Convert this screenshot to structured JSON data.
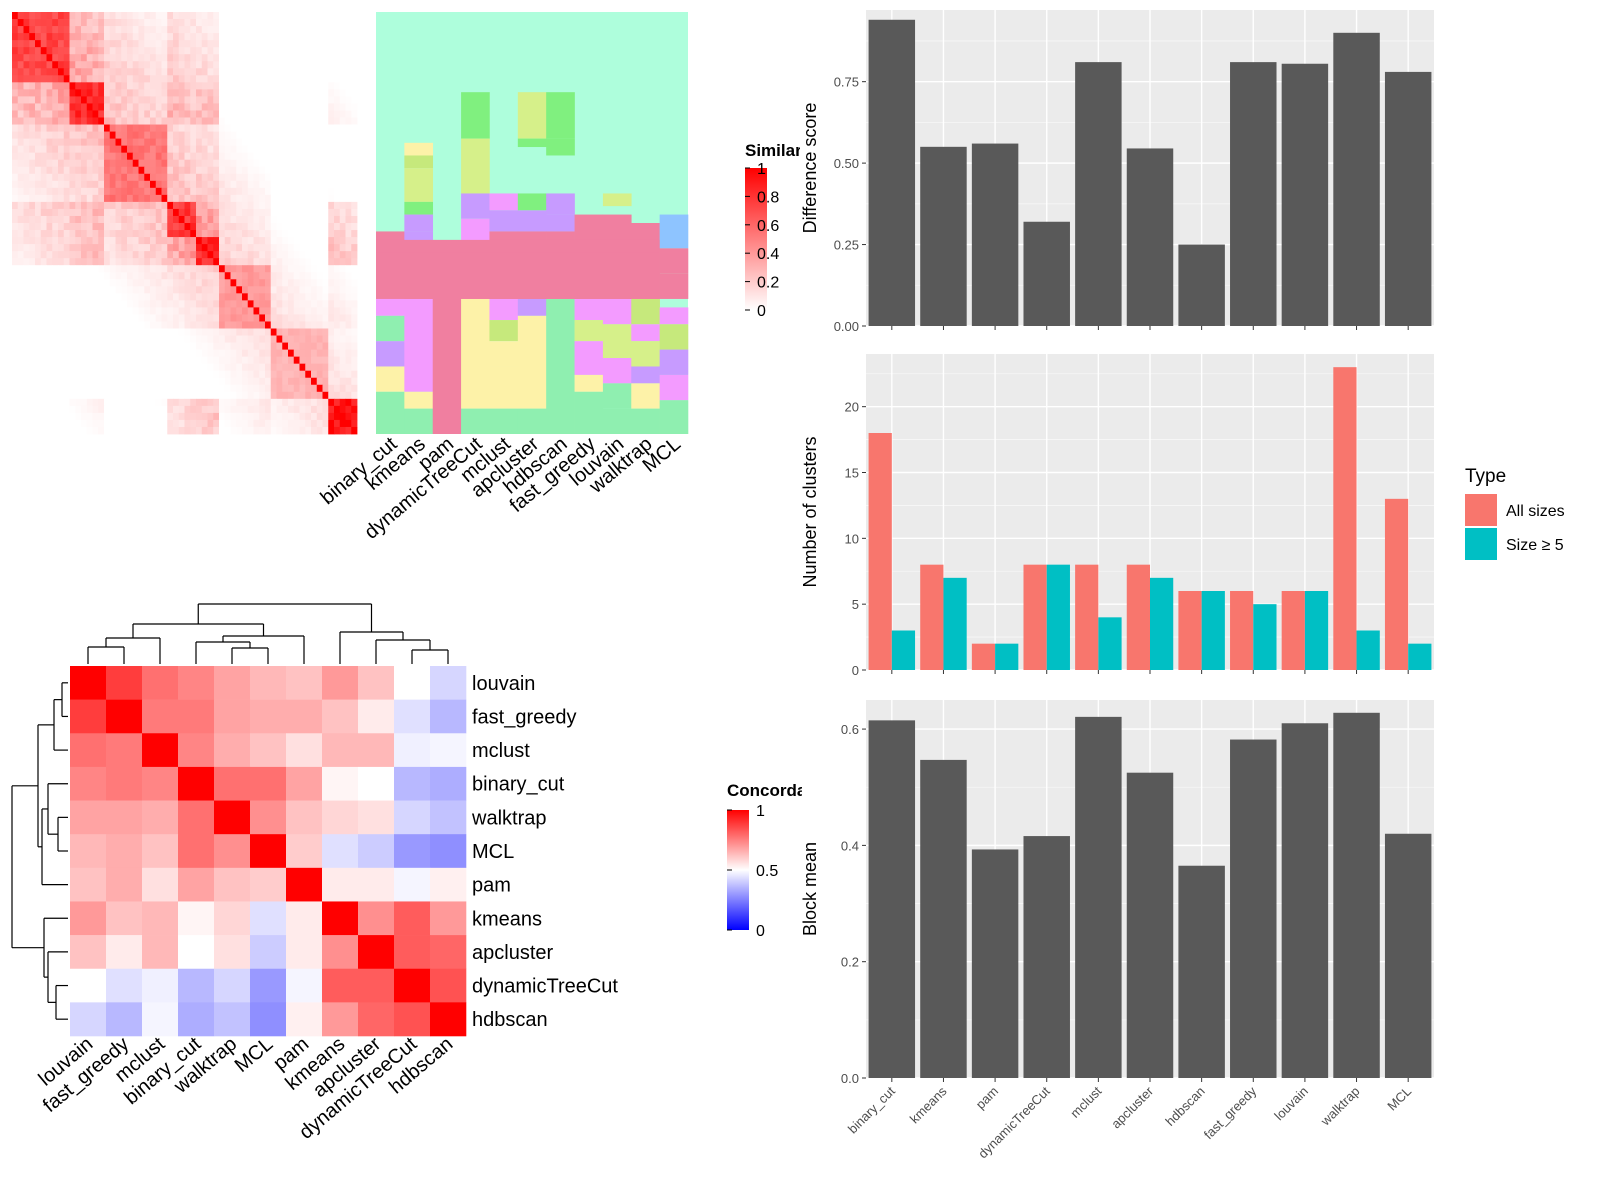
{
  "chart_data": [
    {
      "type": "heatmap",
      "title": "",
      "legend_title": "Similarity",
      "legend_ticks": [
        "1",
        "0.8",
        "0.6",
        "0.4",
        "0.2",
        "0"
      ],
      "color_low": "#ffffff",
      "color_high": "#ff0000",
      "blocks": [
        {
          "start": 0.0,
          "end": 0.17,
          "value": 0.75
        },
        {
          "start": 0.17,
          "end": 0.27,
          "value": 0.85
        },
        {
          "start": 0.27,
          "end": 0.45,
          "value": 0.55
        },
        {
          "start": 0.45,
          "end": 0.53,
          "value": 0.8
        },
        {
          "start": 0.53,
          "end": 0.6,
          "value": 0.85
        },
        {
          "start": 0.6,
          "end": 0.75,
          "value": 0.4
        },
        {
          "start": 0.75,
          "end": 0.92,
          "value": 0.3
        },
        {
          "start": 0.92,
          "end": 1.0,
          "value": 0.95
        }
      ]
    },
    {
      "type": "heatmap",
      "title": "",
      "columns": [
        "binary_cut",
        "kmeans",
        "pam",
        "dynamicTreeCut",
        "mclust",
        "apcluster",
        "hdbscan",
        "fast_greedy",
        "louvain",
        "walktrap",
        "MCL"
      ],
      "background": "#aefedc",
      "colors": [
        "#f07fa0",
        "#f39bff",
        "#fdf2a8",
        "#8fefb0",
        "#c6e97c",
        "#d6f08a",
        "#80f07f",
        "#c79bff",
        "#8ec4ff"
      ]
    },
    {
      "type": "heatmap",
      "title": "",
      "legend_title": "Concordance",
      "legend_ticks": [
        "1",
        "0.5",
        "0"
      ],
      "rows": [
        "louvain",
        "fast_greedy",
        "mclust",
        "binary_cut",
        "walktrap",
        "MCL",
        "pam",
        "kmeans",
        "apcluster",
        "dynamicTreeCut",
        "hdbscan"
      ],
      "columns": [
        "louvain",
        "fast_greedy",
        "mclust",
        "binary_cut",
        "walktrap",
        "MCL",
        "pam",
        "kmeans",
        "apcluster",
        "dynamicTreeCut",
        "hdbscan"
      ],
      "values": [
        [
          1.0,
          0.88,
          0.78,
          0.74,
          0.68,
          0.64,
          0.62,
          0.7,
          0.62,
          0.5,
          0.42
        ],
        [
          0.88,
          1.0,
          0.76,
          0.76,
          0.68,
          0.66,
          0.66,
          0.62,
          0.54,
          0.44,
          0.36
        ],
        [
          0.78,
          0.76,
          1.0,
          0.74,
          0.66,
          0.62,
          0.56,
          0.64,
          0.64,
          0.47,
          0.48
        ],
        [
          0.74,
          0.76,
          0.74,
          1.0,
          0.78,
          0.78,
          0.68,
          0.52,
          0.5,
          0.36,
          0.34
        ],
        [
          0.68,
          0.68,
          0.66,
          0.78,
          1.0,
          0.72,
          0.62,
          0.58,
          0.56,
          0.42,
          0.38
        ],
        [
          0.64,
          0.66,
          0.62,
          0.78,
          0.72,
          1.0,
          0.6,
          0.44,
          0.4,
          0.3,
          0.28
        ],
        [
          0.62,
          0.66,
          0.56,
          0.68,
          0.62,
          0.6,
          1.0,
          0.54,
          0.54,
          0.48,
          0.53
        ],
        [
          0.7,
          0.62,
          0.64,
          0.52,
          0.58,
          0.44,
          0.54,
          1.0,
          0.72,
          0.82,
          0.7
        ],
        [
          0.62,
          0.54,
          0.64,
          0.5,
          0.56,
          0.4,
          0.54,
          0.72,
          1.0,
          0.82,
          0.8
        ],
        [
          0.5,
          0.44,
          0.47,
          0.36,
          0.42,
          0.3,
          0.48,
          0.82,
          0.82,
          1.0,
          0.84
        ],
        [
          0.42,
          0.36,
          0.48,
          0.34,
          0.38,
          0.28,
          0.53,
          0.7,
          0.8,
          0.84,
          1.0
        ]
      ],
      "color_low": "#0000ff",
      "color_mid": "#ffffff",
      "color_high": "#ff0000"
    },
    {
      "type": "bar",
      "categories": [
        "binary_cut",
        "kmeans",
        "pam",
        "dynamicTreeCut",
        "mclust",
        "apcluster",
        "hdbscan",
        "fast_greedy",
        "louvain",
        "walktrap",
        "MCL"
      ],
      "values": [
        0.94,
        0.55,
        0.56,
        0.32,
        0.81,
        0.545,
        0.25,
        0.81,
        0.805,
        0.9,
        0.78
      ],
      "ylabel": "Difference score",
      "ylim": [
        0,
        0.97
      ],
      "yticks": [
        0.0,
        0.25,
        0.5,
        0.75
      ],
      "ytick_labels": [
        "0.00",
        "0.25",
        "0.50",
        "0.75"
      ],
      "bar_color": "#595959"
    },
    {
      "type": "bar",
      "categories": [
        "binary_cut",
        "kmeans",
        "pam",
        "dynamicTreeCut",
        "mclust",
        "apcluster",
        "hdbscan",
        "fast_greedy",
        "louvain",
        "walktrap",
        "MCL"
      ],
      "series": [
        {
          "name": "All sizes",
          "values": [
            18,
            8,
            2,
            8,
            8,
            8,
            6,
            6,
            6,
            23,
            13
          ],
          "color": "#f8766d"
        },
        {
          "name": "Size ≥ 5",
          "values": [
            3,
            7,
            2,
            8,
            4,
            7,
            6,
            5,
            6,
            3,
            2
          ],
          "color": "#00bfc4"
        }
      ],
      "ylabel": "Number of clusters",
      "ylim": [
        0,
        24
      ],
      "yticks": [
        0,
        5,
        10,
        15,
        20
      ],
      "ytick_labels": [
        "0",
        "5",
        "10",
        "15",
        "20"
      ],
      "legend_title": "Type",
      "legend_position": "right"
    },
    {
      "type": "bar",
      "categories": [
        "binary_cut",
        "kmeans",
        "pam",
        "dynamicTreeCut",
        "mclust",
        "apcluster",
        "hdbscan",
        "fast_greedy",
        "louvain",
        "walktrap",
        "MCL"
      ],
      "values": [
        0.615,
        0.547,
        0.393,
        0.416,
        0.621,
        0.525,
        0.365,
        0.582,
        0.61,
        0.628,
        0.42
      ],
      "ylabel": "Block mean",
      "ylim": [
        0,
        0.65
      ],
      "yticks": [
        0.0,
        0.2,
        0.4,
        0.6
      ],
      "ytick_labels": [
        "0.0",
        "0.2",
        "0.4",
        "0.6"
      ],
      "bar_color": "#595959"
    }
  ]
}
